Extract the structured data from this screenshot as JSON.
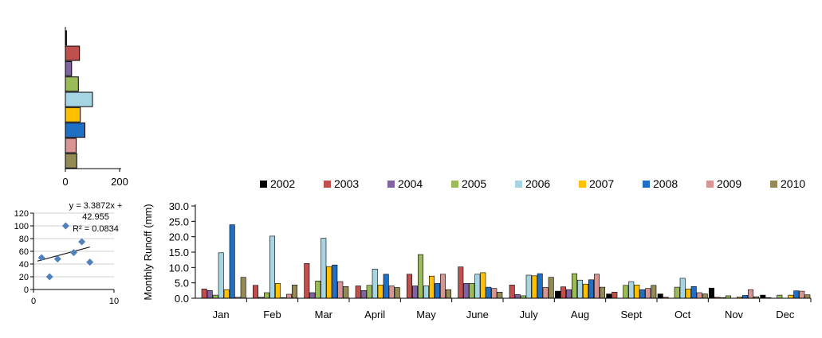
{
  "colors": {
    "2002": "#000000",
    "2003": "#c0504d",
    "2004": "#8064a2",
    "2005": "#9bbb59",
    "2006": "#a5d5e2",
    "2007": "#ffc000",
    "2008": "#1f6fc5",
    "2009": "#d99594",
    "2010": "#948a54",
    "scatter_point": "#4f81bd"
  },
  "chart_data": [
    {
      "type": "bar",
      "orientation": "horizontal",
      "categories": [
        "2002",
        "2003",
        "2004",
        "2005",
        "2006",
        "2007",
        "2008",
        "2009",
        "2010"
      ],
      "values": [
        4,
        52,
        23,
        48,
        100,
        55,
        72,
        40,
        42
      ],
      "xlim": [
        0,
        200
      ],
      "x_ticks": [
        "0",
        "200"
      ]
    },
    {
      "type": "scatter",
      "points": [
        {
          "x": 1,
          "y": 50
        },
        {
          "x": 2,
          "y": 20
        },
        {
          "x": 3,
          "y": 48
        },
        {
          "x": 4,
          "y": 100
        },
        {
          "x": 5,
          "y": 58
        },
        {
          "x": 6,
          "y": 75
        },
        {
          "x": 7,
          "y": 43
        }
      ],
      "xlim": [
        0,
        10
      ],
      "ylim": [
        0,
        120
      ],
      "x_ticks": [
        "0",
        "10"
      ],
      "y_ticks": [
        "0",
        "20",
        "40",
        "60",
        "80",
        "100",
        "120"
      ],
      "trendline": {
        "slope": 3.3872,
        "intercept": 42.955
      },
      "annotation": [
        "y = 3.3872x +",
        "42.955",
        "R² = 0.0834"
      ]
    },
    {
      "type": "bar",
      "ylabel": "Monthly  Runoff (mm)",
      "ylim": [
        0,
        30
      ],
      "y_ticks": [
        "0.0",
        "5.0",
        "10.0",
        "15.0",
        "20.0",
        "25.0",
        "30.0"
      ],
      "categories": [
        "Jan",
        "Feb",
        "Mar",
        "April",
        "May",
        "June",
        "July",
        "Aug",
        "Sept",
        "Oct",
        "Nov",
        "Dec"
      ],
      "legend_position": "top",
      "series": [
        {
          "name": "2002",
          "values": [
            0.0,
            0.0,
            0.0,
            0.0,
            0.0,
            0.0,
            0.0,
            2.3,
            1.4,
            1.4,
            3.3,
            1.0
          ]
        },
        {
          "name": "2003",
          "values": [
            3.0,
            4.2,
            11.3,
            4.0,
            7.8,
            10.2,
            4.3,
            3.7,
            2.0,
            0.3,
            0.3,
            0.2
          ]
        },
        {
          "name": "2004",
          "values": [
            2.5,
            0.3,
            1.8,
            2.5,
            4.0,
            4.8,
            1.2,
            2.8,
            0.0,
            0.0,
            0.2,
            0.0
          ]
        },
        {
          "name": "2005",
          "values": [
            1.0,
            1.8,
            5.6,
            4.2,
            14.2,
            4.8,
            0.8,
            8.0,
            4.2,
            3.6,
            0.8,
            1.0
          ]
        },
        {
          "name": "2006",
          "values": [
            14.8,
            20.2,
            19.5,
            9.5,
            4.0,
            7.8,
            7.5,
            5.9,
            5.4,
            6.5,
            0.0,
            0.0
          ]
        },
        {
          "name": "2007",
          "values": [
            2.8,
            4.8,
            10.3,
            4.3,
            7.2,
            8.3,
            7.3,
            4.6,
            4.3,
            3.0,
            0.4,
            1.0
          ]
        },
        {
          "name": "2008",
          "values": [
            23.9,
            0.2,
            10.8,
            7.8,
            4.8,
            3.6,
            8.0,
            6.0,
            2.8,
            3.8,
            0.9,
            2.4
          ]
        },
        {
          "name": "2009",
          "values": [
            0.3,
            1.3,
            5.4,
            4.0,
            7.8,
            3.2,
            3.5,
            7.8,
            3.2,
            1.8,
            2.8,
            2.3
          ]
        },
        {
          "name": "2010",
          "values": [
            6.8,
            4.3,
            3.8,
            3.5,
            2.8,
            2.0,
            6.8,
            3.6,
            4.2,
            1.4,
            0.5,
            1.1
          ]
        }
      ]
    }
  ]
}
